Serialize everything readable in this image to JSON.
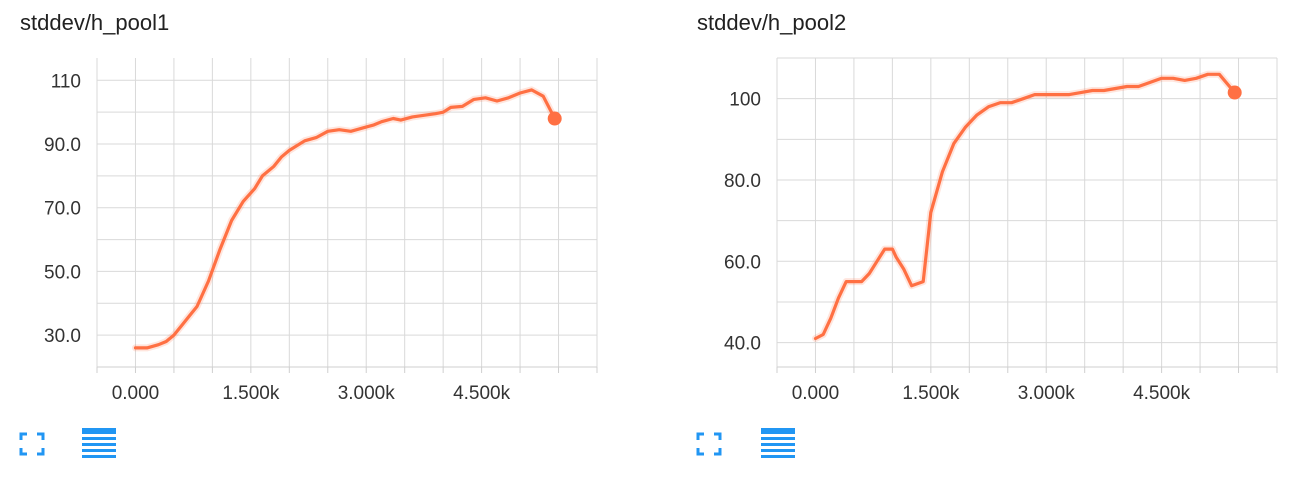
{
  "charts": [
    {
      "title": "stddev/h_pool1",
      "actions": {
        "expand": "fullscreen-icon",
        "data": "list-icon"
      },
      "chart_data": {
        "type": "line",
        "xlabel": "",
        "ylabel": "",
        "xlim": [
          -500,
          6000
        ],
        "ylim": [
          20,
          117
        ],
        "x_tick_values": [
          0,
          1500,
          3000,
          4500
        ],
        "x_tick_labels": [
          "0.000",
          "1.500k",
          "3.000k",
          "4.500k"
        ],
        "y_tick_values": [
          30,
          50,
          70,
          90,
          110
        ],
        "y_tick_labels": [
          "30.0",
          "50.0",
          "70.0",
          "90.0",
          "110"
        ],
        "grid": true,
        "legend": "none",
        "series": [
          {
            "color": "#ff7043",
            "x": [
              0,
              150,
              300,
              400,
              500,
              600,
              700,
              800,
              950,
              1100,
              1250,
              1400,
              1550,
              1650,
              1800,
              1900,
              2000,
              2200,
              2350,
              2500,
              2650,
              2800,
              2950,
              3100,
              3200,
              3350,
              3450,
              3600,
              3750,
              3900,
              4000,
              4100,
              4250,
              4400,
              4550,
              4700,
              4850,
              5000,
              5150,
              5300,
              5450
            ],
            "y": [
              26,
              26,
              27,
              28,
              30,
              33,
              36,
              39,
              47,
              57,
              66,
              72,
              76,
              80,
              83,
              86,
              88,
              91,
              92,
              94,
              94.5,
              94,
              95,
              96,
              97,
              98,
              97.5,
              98.5,
              99,
              99.5,
              100,
              101.5,
              101.8,
              104,
              104.5,
              103.5,
              104.5,
              106,
              107,
              105,
              98
            ]
          }
        ]
      }
    },
    {
      "title": "stddev/h_pool2",
      "actions": {
        "expand": "fullscreen-icon",
        "data": "list-icon"
      },
      "chart_data": {
        "type": "line",
        "xlabel": "",
        "ylabel": "",
        "xlim": [
          -500,
          6000
        ],
        "ylim": [
          34,
          110
        ],
        "x_tick_values": [
          0,
          1500,
          3000,
          4500
        ],
        "x_tick_labels": [
          "0.000",
          "1.500k",
          "3.000k",
          "4.500k"
        ],
        "y_tick_values": [
          40,
          60,
          80,
          100
        ],
        "y_tick_labels": [
          "40.0",
          "60.0",
          "80.0",
          "100"
        ],
        "grid": true,
        "legend": "none",
        "series": [
          {
            "color": "#ff7043",
            "x": [
              0,
              100,
              200,
              300,
              400,
              500,
              600,
              700,
              800,
              900,
              1000,
              1050,
              1150,
              1250,
              1400,
              1500,
              1650,
              1800,
              1950,
              2100,
              2250,
              2400,
              2550,
              2700,
              2850,
              3000,
              3150,
              3300,
              3450,
              3600,
              3750,
              3900,
              4050,
              4200,
              4350,
              4500,
              4650,
              4800,
              4950,
              5100,
              5250,
              5450
            ],
            "y": [
              41,
              42,
              46,
              51,
              55,
              55,
              55,
              57,
              60,
              63,
              63,
              61,
              58,
              54,
              55,
              72,
              82,
              89,
              93,
              96,
              98,
              99,
              99,
              100,
              101,
              101,
              101,
              101,
              101.5,
              102,
              102,
              102.5,
              103,
              103,
              104,
              105,
              105,
              104.5,
              105,
              106,
              106,
              101.5
            ]
          }
        ]
      }
    }
  ]
}
